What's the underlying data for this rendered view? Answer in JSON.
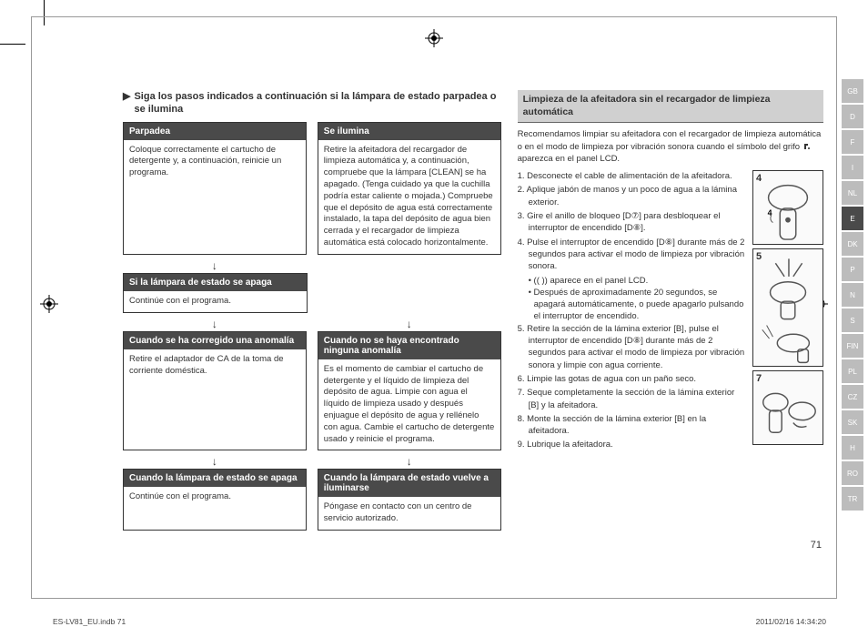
{
  "section_heading": "Siga los pasos indicados a continuación si la lámpara de estado parpadea o se ilumina",
  "flow": {
    "row1": [
      {
        "header": "Parpadea",
        "body": "Coloque correctamente el cartucho de detergente y, a continuación, reinicie un programa."
      },
      {
        "header": "Se ilumina",
        "body": "Retire la afeitadora del recargador de limpieza automática y, a continuación, compruebe que la lámpara [CLEAN] se ha apagado. (Tenga cuidado ya que la cuchilla podría estar caliente o mojada.) Compruebe que el depósito de agua está correctamente instalado, la tapa del depósito de agua bien cerrada y el recargador de limpieza automática está colocado horizontalmente."
      }
    ],
    "row2_left": {
      "header": "Si la lámpara de estado se apaga",
      "body": "Continúe con el programa."
    },
    "row3": [
      {
        "header": "Cuando se ha corregido una anomalía",
        "body": "Retire el adaptador de CA de la toma de corriente doméstica."
      },
      {
        "header": "Cuando no se haya encontrado ninguna anomalía",
        "body": "Es el momento de cambiar el cartucho de detergente y el líquido de limpieza del depósito de agua. Limpie con agua el líquido de limpieza usado y después enjuague el depósito de agua y rellénelo con agua. Cambie el cartucho de detergente usado y reinicie el programa."
      }
    ],
    "row4": [
      {
        "header": "Cuando la lámpara de estado se apaga",
        "body": "Continúe con el programa."
      },
      {
        "header": "Cuando la lámpara de estado vuelve a iluminarse",
        "body": "Póngase en contacto con un centro de servicio autorizado."
      }
    ]
  },
  "right_heading": "Limpieza de la afeitadora sin el recargador de limpieza automática",
  "right_intro_pre": "Recomendamos limpiar su afeitadora con el recargador de limpieza automática o en el modo de limpieza por vibración sonora cuando el símbolo del grifo ",
  "right_intro_post": " aparezca en el panel LCD.",
  "steps": [
    "Desconecte el cable de alimentación de la afeitadora.",
    "Aplique jabón de manos y un poco de agua a la lámina exterior.",
    "Gire el anillo de bloqueo [D⑦] para desbloquear el interruptor de encendido [D⑧].",
    "Pulse el interruptor de encendido [D⑧] durante más de 2 segundos para activar el modo de limpieza por vibración sonora.",
    "Retire la sección de la lámina exterior [B], pulse el interruptor de encendido [D⑧] durante más de 2 segundos para activar el modo de limpieza por vibración sonora y limpie con agua corriente.",
    "Limpie las gotas de agua con un paño seco.",
    "Seque completamente la sección de la lámina exterior [B] y la afeitadora.",
    "Monte la sección de la lámina exterior [B] en la afeitadora.",
    "Lubrique la afeitadora."
  ],
  "step4_bullets": [
    "(( )) aparece en el panel LCD.",
    "Después de aproximadamente 20 segundos, se apagará automáticamente, o puede apagarlo pulsando el interruptor de encendido."
  ],
  "figs": [
    "4",
    "5",
    "7"
  ],
  "page_number": "71",
  "lang_tabs": [
    "GB",
    "D",
    "F",
    "I",
    "NL",
    "E",
    "DK",
    "P",
    "N",
    "S",
    "FIN",
    "PL",
    "CZ",
    "SK",
    "H",
    "RO",
    "TR"
  ],
  "active_lang": "E",
  "footer_left": "ES-LV81_EU.indb   71",
  "footer_right": "2011/02/16   14:34:20"
}
